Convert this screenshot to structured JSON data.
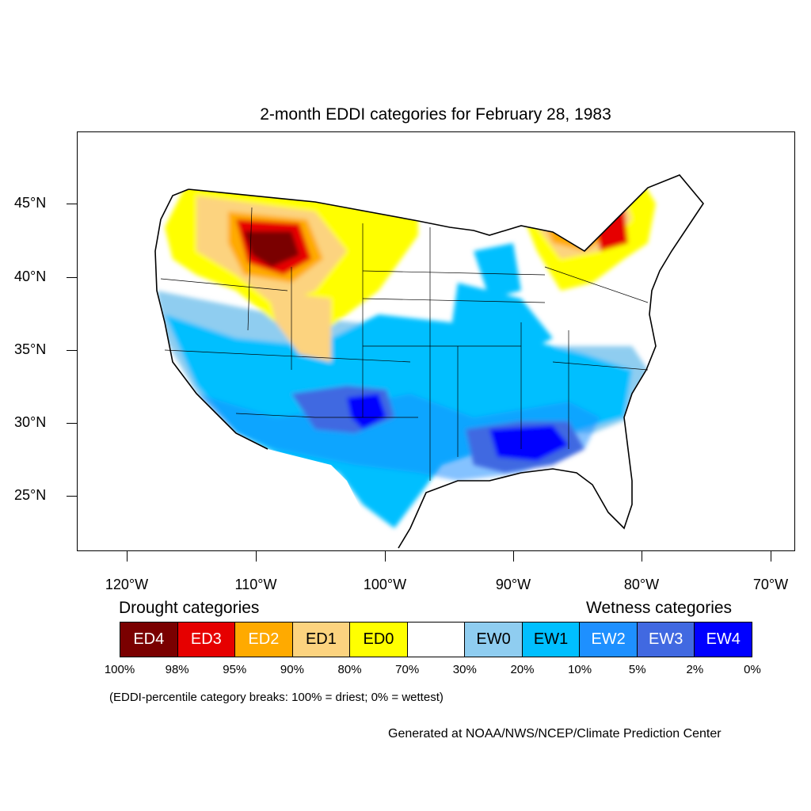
{
  "title": "2-month EDDI categories for February 28, 1983",
  "lat_labels": [
    "45°N",
    "40°N",
    "35°N",
    "30°N",
    "25°N"
  ],
  "lon_labels": [
    "120°W",
    "110°W",
    "100°W",
    "90°W",
    "80°W",
    "70°W"
  ],
  "legend": {
    "drought_heading": "Drought categories",
    "wetness_heading": "Wetness categories",
    "categories": [
      {
        "label": "ED4",
        "color": "#7a0000",
        "text_color": "#ffffff"
      },
      {
        "label": "ED3",
        "color": "#e60000",
        "text_color": "#ffffff"
      },
      {
        "label": "ED2",
        "color": "#ffaa00",
        "text_color": "#ffffff"
      },
      {
        "label": "ED1",
        "color": "#fcd37f",
        "text_color": "#000000"
      },
      {
        "label": "ED0",
        "color": "#ffff00",
        "text_color": "#000000"
      },
      {
        "label": "",
        "color": "#ffffff",
        "text_color": "#000000"
      },
      {
        "label": "EW0",
        "color": "#8fcdf0",
        "text_color": "#000000"
      },
      {
        "label": "EW1",
        "color": "#00bfff",
        "text_color": "#000000"
      },
      {
        "label": "EW2",
        "color": "#1e90ff",
        "text_color": "#ffffff"
      },
      {
        "label": "EW3",
        "color": "#4169e1",
        "text_color": "#ffffff"
      },
      {
        "label": "EW4",
        "color": "#0000ff",
        "text_color": "#ffffff"
      }
    ],
    "percentiles": [
      "100%",
      "98%",
      "95%",
      "90%",
      "80%",
      "70%",
      "30%",
      "20%",
      "10%",
      "5%",
      "2%",
      "0%"
    ]
  },
  "note": "(EDDI-percentile category breaks: 100% = driest; 0% = wettest)",
  "credit": "Generated at NOAA/NWS/NCEP/Climate Prediction Center"
}
